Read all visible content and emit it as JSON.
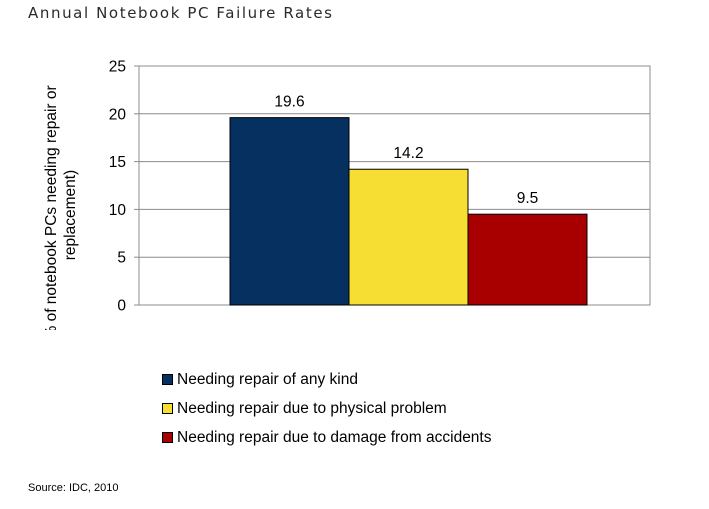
{
  "page": {
    "title": "Annual Notebook PC Failure Rates",
    "source": "Source: IDC, 2010"
  },
  "chart_data": {
    "type": "bar",
    "title": "Annual Notebook PC Failure Rates",
    "ylabel_lines": [
      "(% of notebook PCs needing repair or",
      "replacement)"
    ],
    "xlabel": "",
    "ylim": [
      0,
      25
    ],
    "yticks": [
      0,
      5,
      10,
      15,
      20,
      25
    ],
    "grid": true,
    "legend_placement": "bottom",
    "series": [
      {
        "name": "Needing repair of any kind",
        "value": 19.6,
        "label": "19.6",
        "color": "#05305f"
      },
      {
        "name": "Needing repair due to physical problem",
        "value": 14.2,
        "label": "14.2",
        "color": "#f7de32"
      },
      {
        "name": "Needing repair due to damage from accidents",
        "value": 9.5,
        "label": "9.5",
        "color": "#a80000"
      }
    ]
  }
}
